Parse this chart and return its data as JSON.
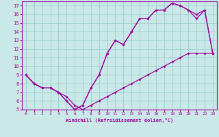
{
  "xlabel": "Windchill (Refroidissement éolien,°C)",
  "background_color": "#cbe8e8",
  "grid_color": "#99cccc",
  "line_color": "#990099",
  "xlim": [
    -0.5,
    23.5
  ],
  "ylim": [
    5,
    17.5
  ],
  "xticks": [
    0,
    1,
    2,
    3,
    4,
    5,
    6,
    7,
    8,
    9,
    10,
    11,
    12,
    13,
    14,
    15,
    16,
    17,
    18,
    19,
    20,
    21,
    22,
    23
  ],
  "yticks": [
    5,
    6,
    7,
    8,
    9,
    10,
    11,
    12,
    13,
    14,
    15,
    16,
    17
  ],
  "line1_x": [
    0,
    1,
    2,
    3,
    4,
    5,
    6,
    7,
    8,
    9,
    10,
    11,
    12,
    13,
    14,
    15,
    16,
    17,
    18,
    19,
    20,
    21,
    22,
    23
  ],
  "line1_y": [
    9.0,
    8.0,
    7.5,
    7.5,
    7.0,
    6.5,
    5.5,
    5.0,
    5.5,
    6.0,
    6.5,
    7.0,
    7.5,
    8.0,
    8.5,
    9.0,
    9.5,
    10.0,
    10.5,
    11.0,
    11.5,
    11.5,
    11.5,
    11.5
  ],
  "line2_x": [
    0,
    1,
    2,
    3,
    4,
    5,
    6,
    7,
    8,
    9,
    10,
    11,
    12,
    13,
    14,
    15,
    16,
    17,
    18,
    19,
    20,
    21,
    22,
    23
  ],
  "line2_y": [
    9.0,
    8.0,
    7.5,
    7.5,
    7.0,
    6.0,
    5.0,
    5.5,
    7.5,
    9.0,
    11.5,
    13.0,
    12.5,
    14.0,
    15.5,
    15.5,
    16.5,
    16.5,
    17.3,
    17.0,
    16.5,
    15.5,
    16.5,
    11.5
  ],
  "line3_x": [
    0,
    1,
    2,
    3,
    4,
    5,
    6,
    7,
    8,
    9,
    10,
    11,
    12,
    13,
    14,
    15,
    16,
    17,
    18,
    19,
    20,
    21,
    22,
    23
  ],
  "line3_y": [
    9.0,
    8.0,
    7.5,
    7.5,
    7.0,
    6.0,
    5.0,
    5.5,
    7.5,
    9.0,
    11.5,
    13.0,
    12.5,
    14.0,
    15.5,
    15.5,
    16.5,
    16.5,
    17.3,
    17.0,
    16.5,
    16.0,
    16.5,
    11.5
  ]
}
